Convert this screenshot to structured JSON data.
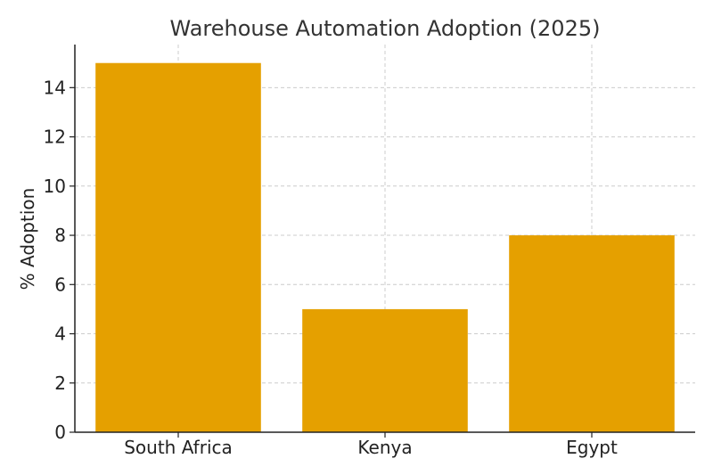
{
  "chart_data": {
    "type": "bar",
    "title": "Warehouse Automation Adoption (2025)",
    "xlabel": "",
    "ylabel": "% Adoption",
    "categories": [
      "South Africa",
      "Kenya",
      "Egypt"
    ],
    "values": [
      15,
      5,
      8
    ],
    "ylim": [
      0,
      15.75
    ],
    "yticks": [
      0,
      2,
      4,
      6,
      8,
      10,
      12,
      14
    ],
    "grid": true,
    "bar_color": "#E5A000",
    "grid_color": "#cccccc"
  }
}
